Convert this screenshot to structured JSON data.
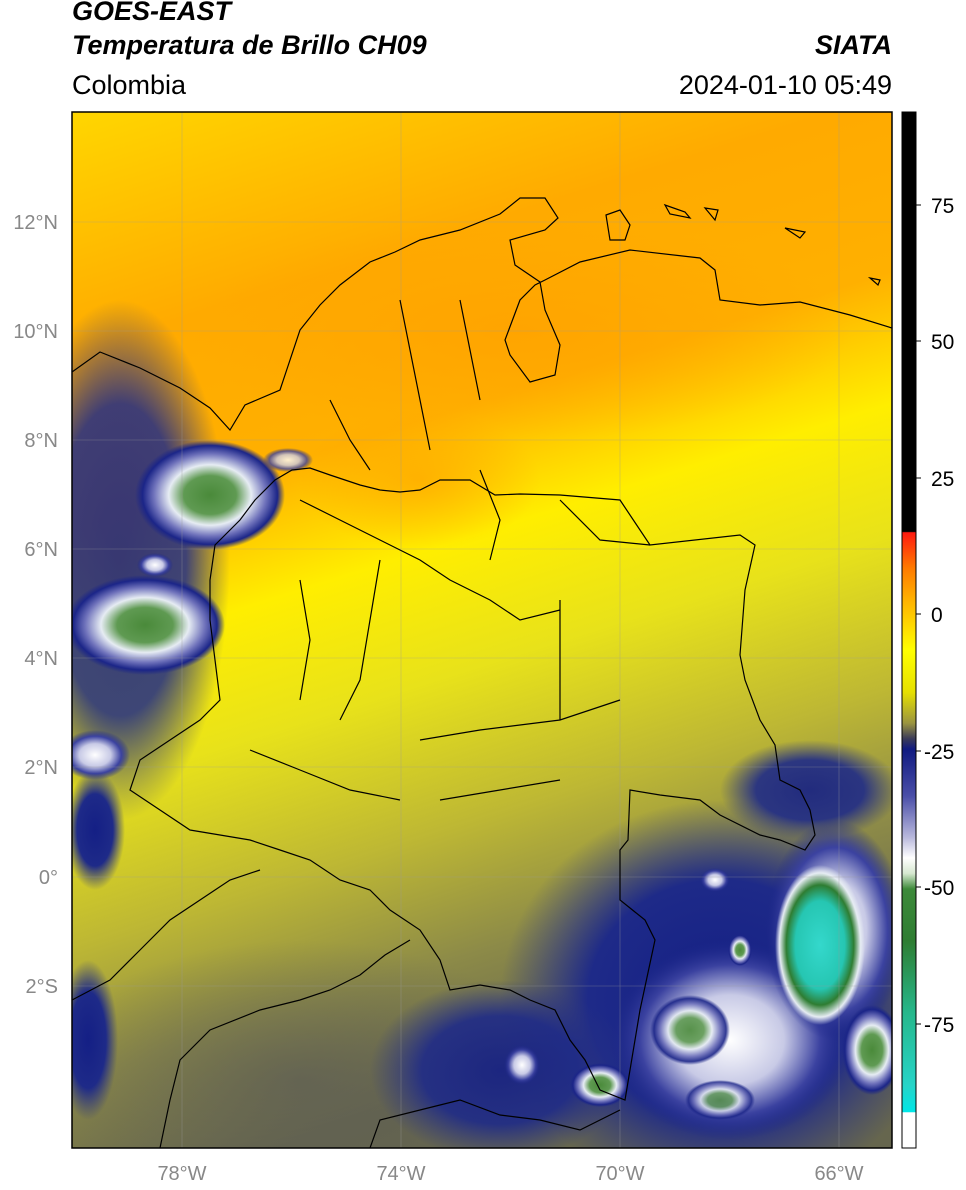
{
  "header": {
    "satellite": "GOES-EAST",
    "product": "Temperatura de Brillo CH09",
    "region": "Colombia",
    "agency": "SIATA",
    "datetime": "2024-01-10 05:49"
  },
  "map": {
    "lon_ticks": [
      "78°W",
      "74°W",
      "70°W",
      "66°W"
    ],
    "lat_ticks": [
      "12°N",
      "10°N",
      "8°N",
      "6°N",
      "4°N",
      "2°N",
      "0°",
      "2°S"
    ]
  },
  "colorbar": {
    "ticks": [
      "75",
      "50",
      "25",
      "0",
      "-25",
      "-50",
      "-75"
    ],
    "colors": {
      "black": "#000000",
      "red": "#e81c10",
      "orange": "#ffa500",
      "yellow": "#ffff00",
      "olive": "#8d8a3c",
      "navy": "#101a80",
      "white": "#ffffff",
      "green": "#2e7d32",
      "cyan": "#26d4c8"
    }
  }
}
